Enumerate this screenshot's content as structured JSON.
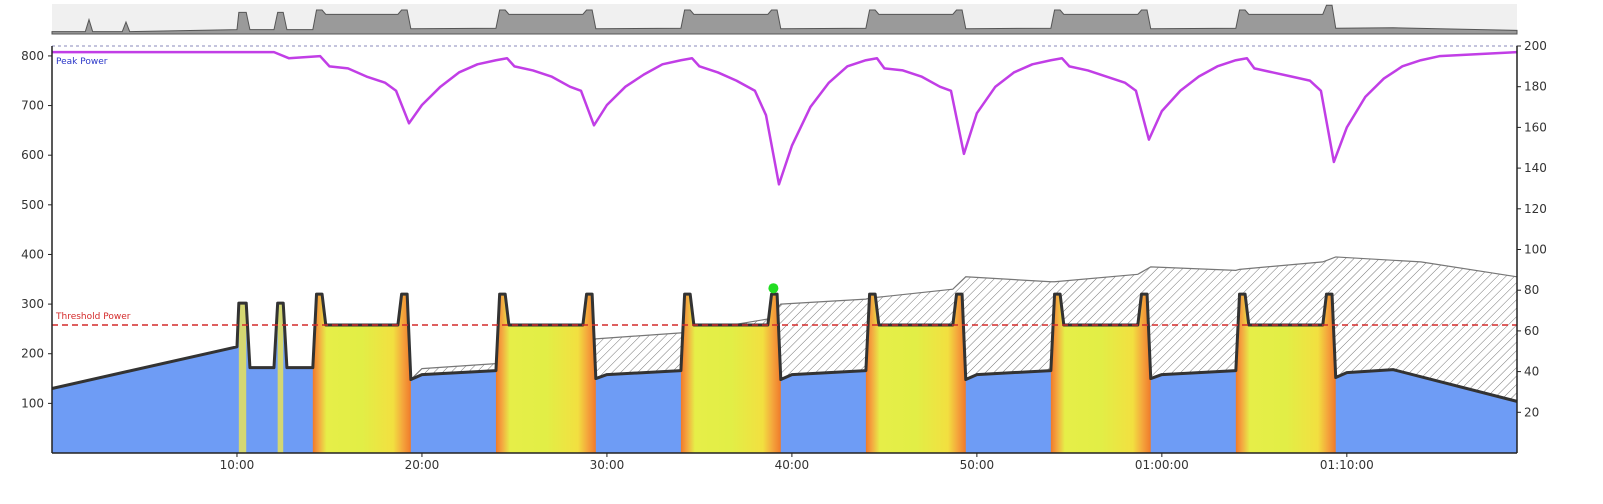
{
  "chart_data": {
    "type": "area",
    "annotations": {
      "peak_power": "Peak Power",
      "threshold_power": "Threshold Power"
    },
    "x_axis": {
      "unit": "minutes",
      "range": [
        0,
        79.2
      ],
      "ticks": [
        {
          "value": 10,
          "label": "10:00"
        },
        {
          "value": 20,
          "label": "20:00"
        },
        {
          "value": 30,
          "label": "30:00"
        },
        {
          "value": 40,
          "label": "40:00"
        },
        {
          "value": 50,
          "label": "50:00"
        },
        {
          "value": 60,
          "label": "01:00:00"
        },
        {
          "value": 70,
          "label": "01:10:00"
        }
      ]
    },
    "y_left": {
      "range": [
        0,
        820
      ],
      "ticks": [
        {
          "value": 100,
          "label": "100"
        },
        {
          "value": 200,
          "label": "200"
        },
        {
          "value": 300,
          "label": "300"
        },
        {
          "value": 400,
          "label": "400"
        },
        {
          "value": 500,
          "label": "500"
        },
        {
          "value": 600,
          "label": "600"
        },
        {
          "value": 700,
          "label": "700"
        },
        {
          "value": 800,
          "label": "800"
        }
      ]
    },
    "y_right": {
      "range": [
        0,
        200
      ],
      "ticks": [
        {
          "value": 20,
          "label": "20"
        },
        {
          "value": 40,
          "label": "40"
        },
        {
          "value": 60,
          "label": "60"
        },
        {
          "value": 80,
          "label": "80"
        },
        {
          "value": 100,
          "label": "100"
        },
        {
          "value": 120,
          "label": "120"
        },
        {
          "value": 140,
          "label": "140"
        },
        {
          "value": 160,
          "label": "160"
        },
        {
          "value": 180,
          "label": "180"
        },
        {
          "value": 200,
          "label": "200"
        }
      ]
    },
    "threshold_power": 258,
    "highlight_point": {
      "x": 39.0,
      "y": 332
    },
    "series": [
      {
        "role": "target-power",
        "axis": "left",
        "points": [
          [
            0,
            130
          ],
          [
            10,
            214
          ],
          [
            10.1,
            302
          ],
          [
            10.5,
            302
          ],
          [
            10.7,
            172
          ],
          [
            12,
            172
          ],
          [
            12.2,
            302
          ],
          [
            12.5,
            302
          ],
          [
            12.7,
            172
          ],
          [
            14.1,
            172
          ],
          [
            14.3,
            320
          ],
          [
            14.6,
            320
          ],
          [
            14.8,
            258
          ],
          [
            18.7,
            258
          ],
          [
            18.9,
            320
          ],
          [
            19.2,
            320
          ],
          [
            19.4,
            148
          ],
          [
            20,
            158
          ],
          [
            24,
            166
          ],
          [
            24.2,
            320
          ],
          [
            24.5,
            320
          ],
          [
            24.7,
            258
          ],
          [
            28.7,
            258
          ],
          [
            28.9,
            320
          ],
          [
            29.2,
            320
          ],
          [
            29.4,
            150
          ],
          [
            30,
            158
          ],
          [
            34,
            166
          ],
          [
            34.2,
            320
          ],
          [
            34.5,
            320
          ],
          [
            34.7,
            258
          ],
          [
            38.7,
            258
          ],
          [
            38.9,
            320
          ],
          [
            39.2,
            320
          ],
          [
            39.4,
            148
          ],
          [
            40,
            158
          ],
          [
            44,
            166
          ],
          [
            44.2,
            320
          ],
          [
            44.5,
            320
          ],
          [
            44.7,
            258
          ],
          [
            48.7,
            258
          ],
          [
            48.9,
            320
          ],
          [
            49.2,
            320
          ],
          [
            49.4,
            148
          ],
          [
            50,
            158
          ],
          [
            54,
            166
          ],
          [
            54.2,
            320
          ],
          [
            54.5,
            320
          ],
          [
            54.7,
            258
          ],
          [
            58.7,
            258
          ],
          [
            58.9,
            320
          ],
          [
            59.2,
            320
          ],
          [
            59.4,
            150
          ],
          [
            60,
            158
          ],
          [
            64,
            166
          ],
          [
            64.2,
            320
          ],
          [
            64.5,
            320
          ],
          [
            64.7,
            258
          ],
          [
            68.7,
            258
          ],
          [
            68.9,
            320
          ],
          [
            69.2,
            320
          ],
          [
            69.4,
            152
          ],
          [
            70,
            162
          ],
          [
            72.5,
            168
          ],
          [
            79.2,
            104
          ]
        ]
      },
      {
        "role": "reserve-envelope",
        "axis": "left",
        "points": [
          [
            19.4,
            148
          ],
          [
            20,
            170
          ],
          [
            24,
            180
          ],
          [
            24.2,
            180
          ],
          [
            28.7,
            190
          ],
          [
            29.4,
            230
          ],
          [
            34,
            242
          ],
          [
            34.2,
            242
          ],
          [
            38.7,
            270
          ],
          [
            39.4,
            300
          ],
          [
            44,
            310
          ],
          [
            44.2,
            312
          ],
          [
            48.7,
            330
          ],
          [
            49.4,
            355
          ],
          [
            54,
            345
          ],
          [
            54.2,
            345
          ],
          [
            58.7,
            360
          ],
          [
            59.4,
            375
          ],
          [
            64,
            368
          ],
          [
            64.2,
            370
          ],
          [
            68.7,
            385
          ],
          [
            69.4,
            395
          ],
          [
            74,
            385
          ],
          [
            79.2,
            355
          ]
        ]
      },
      {
        "role": "peak-power-curve",
        "axis": "right",
        "points": [
          [
            0,
            197
          ],
          [
            12,
            197
          ],
          [
            12.8,
            194
          ],
          [
            14.5,
            195
          ],
          [
            15,
            190
          ],
          [
            16,
            189
          ],
          [
            17,
            185
          ],
          [
            18,
            182
          ],
          [
            18.6,
            178
          ],
          [
            19.3,
            162
          ],
          [
            20,
            171
          ],
          [
            21,
            180
          ],
          [
            22,
            187
          ],
          [
            23,
            191
          ],
          [
            24,
            193
          ],
          [
            24.6,
            194
          ],
          [
            25,
            190
          ],
          [
            26,
            188
          ],
          [
            27,
            185
          ],
          [
            28,
            180
          ],
          [
            28.6,
            178
          ],
          [
            29.3,
            161
          ],
          [
            30,
            171
          ],
          [
            31,
            180
          ],
          [
            32,
            186
          ],
          [
            33,
            191
          ],
          [
            34,
            193
          ],
          [
            34.6,
            194
          ],
          [
            35,
            190
          ],
          [
            36,
            187
          ],
          [
            37,
            183
          ],
          [
            38,
            178
          ],
          [
            38.6,
            166
          ],
          [
            39.3,
            132
          ],
          [
            40,
            151
          ],
          [
            41,
            170
          ],
          [
            42,
            182
          ],
          [
            43,
            190
          ],
          [
            44,
            193
          ],
          [
            44.6,
            194
          ],
          [
            45,
            189
          ],
          [
            46,
            188
          ],
          [
            47,
            185
          ],
          [
            48,
            180
          ],
          [
            48.6,
            178
          ],
          [
            49.3,
            147
          ],
          [
            50,
            167
          ],
          [
            51,
            180
          ],
          [
            52,
            187
          ],
          [
            53,
            191
          ],
          [
            54,
            193
          ],
          [
            54.6,
            194
          ],
          [
            55,
            190
          ],
          [
            56,
            188
          ],
          [
            57,
            185
          ],
          [
            58,
            182
          ],
          [
            58.6,
            178
          ],
          [
            59.3,
            154
          ],
          [
            60,
            168
          ],
          [
            61,
            178
          ],
          [
            62,
            185
          ],
          [
            63,
            190
          ],
          [
            64,
            193
          ],
          [
            64.6,
            194
          ],
          [
            65,
            189
          ],
          [
            66,
            187
          ],
          [
            67,
            185
          ],
          [
            68,
            183
          ],
          [
            68.6,
            178
          ],
          [
            69.3,
            143
          ],
          [
            70,
            160
          ],
          [
            71,
            175
          ],
          [
            72,
            184
          ],
          [
            73,
            190
          ],
          [
            74,
            193
          ],
          [
            75,
            195
          ],
          [
            79.2,
            197
          ]
        ]
      },
      {
        "role": "overview-profile",
        "axis": "overview",
        "points": [
          [
            0,
            0.1
          ],
          [
            1.8,
            0.1
          ],
          [
            2,
            0.6
          ],
          [
            2.2,
            0.1
          ],
          [
            3.8,
            0.1
          ],
          [
            4,
            0.5
          ],
          [
            4.2,
            0.1
          ],
          [
            10,
            0.18
          ],
          [
            10.1,
            0.9
          ],
          [
            10.5,
            0.9
          ],
          [
            10.7,
            0.18
          ],
          [
            12,
            0.18
          ],
          [
            12.2,
            0.9
          ],
          [
            12.5,
            0.9
          ],
          [
            12.7,
            0.18
          ],
          [
            14.1,
            0.18
          ],
          [
            14.3,
            1.0
          ],
          [
            14.6,
            1.0
          ],
          [
            14.8,
            0.82
          ],
          [
            18.7,
            0.82
          ],
          [
            18.9,
            1.0
          ],
          [
            19.2,
            1.0
          ],
          [
            19.4,
            0.22
          ],
          [
            24,
            0.24
          ],
          [
            24.2,
            1.0
          ],
          [
            24.5,
            1.0
          ],
          [
            24.7,
            0.82
          ],
          [
            28.7,
            0.82
          ],
          [
            28.9,
            1.0
          ],
          [
            29.2,
            1.0
          ],
          [
            29.4,
            0.22
          ],
          [
            34,
            0.24
          ],
          [
            34.2,
            1.0
          ],
          [
            34.5,
            1.0
          ],
          [
            34.7,
            0.82
          ],
          [
            38.7,
            0.82
          ],
          [
            38.9,
            1.0
          ],
          [
            39.2,
            1.0
          ],
          [
            39.4,
            0.22
          ],
          [
            44,
            0.24
          ],
          [
            44.2,
            1.0
          ],
          [
            44.5,
            1.0
          ],
          [
            44.7,
            0.82
          ],
          [
            48.7,
            0.82
          ],
          [
            48.9,
            1.0
          ],
          [
            49.2,
            1.0
          ],
          [
            49.4,
            0.22
          ],
          [
            54,
            0.24
          ],
          [
            54.2,
            1.0
          ],
          [
            54.5,
            1.0
          ],
          [
            54.7,
            0.82
          ],
          [
            58.7,
            0.82
          ],
          [
            58.9,
            1.0
          ],
          [
            59.2,
            1.0
          ],
          [
            59.4,
            0.22
          ],
          [
            64,
            0.24
          ],
          [
            64.2,
            1.0
          ],
          [
            64.5,
            1.0
          ],
          [
            64.7,
            0.82
          ],
          [
            68.7,
            0.82
          ],
          [
            68.9,
            1.2
          ],
          [
            69.2,
            1.2
          ],
          [
            69.4,
            0.24
          ],
          [
            72.5,
            0.26
          ],
          [
            79.2,
            0.15
          ]
        ]
      }
    ],
    "intervals": [
      {
        "start": 14.1,
        "end": 19.4
      },
      {
        "start": 24.0,
        "end": 29.4
      },
      {
        "start": 34.0,
        "end": 39.4
      },
      {
        "start": 44.0,
        "end": 49.4
      },
      {
        "start": 54.0,
        "end": 59.4
      },
      {
        "start": 64.0,
        "end": 69.4
      }
    ],
    "colors": {
      "blue_fill": "#6e9cf5",
      "yellow": "#e8ef44",
      "orange": "#f08a2a",
      "peak_curve": "#c13ee6",
      "threshold_line": "#d42a2a",
      "outline": "#333333",
      "highlight": "#22dd22",
      "overview_fill": "#9a9a9a"
    }
  }
}
